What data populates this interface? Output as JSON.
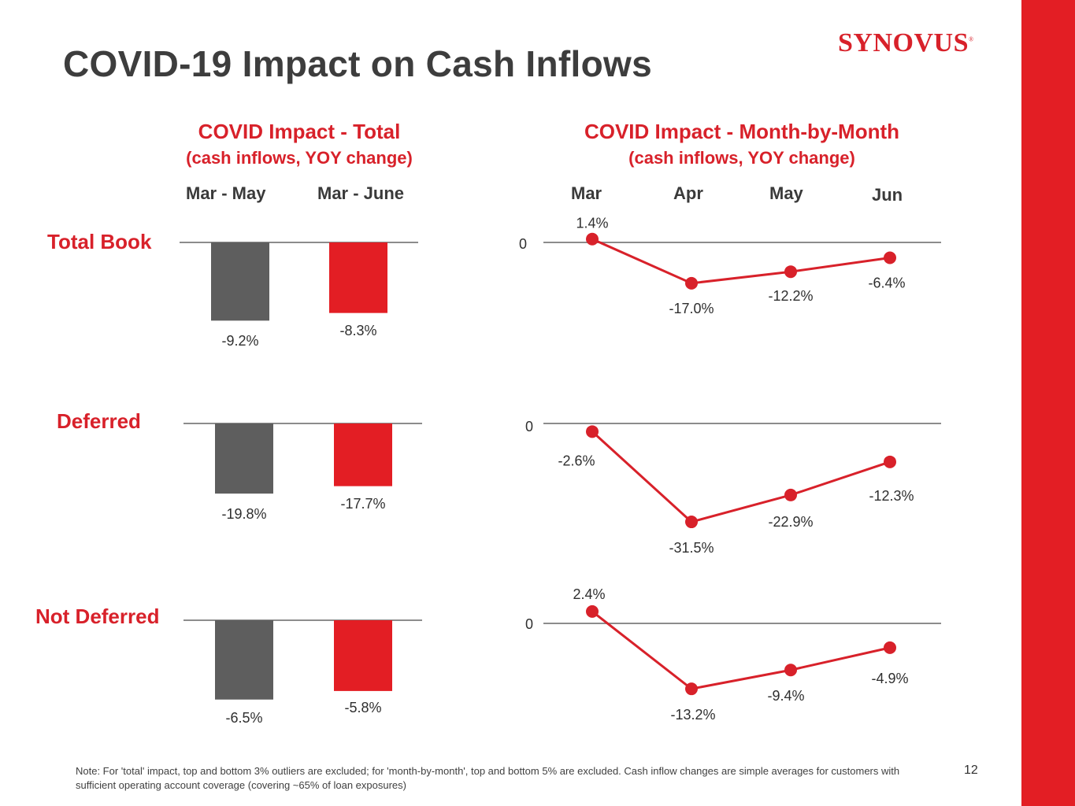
{
  "title": "COVID-19 Impact on Cash Inflows",
  "logo": {
    "text": "SYNOVUS",
    "mark": "®"
  },
  "colors": {
    "accent": "#d8212a",
    "bar_gray": "#5e5e5e",
    "axis": "#8c8c8c",
    "text": "#3a3a3a",
    "sidebar": "#e31e24"
  },
  "left_panel": {
    "title": "COVID Impact - Total",
    "subtitle": "(cash inflows, YOY change)",
    "columns": [
      "Mar - May",
      "Mar - June"
    ]
  },
  "right_panel": {
    "title": "COVID Impact - Month-by-Month",
    "subtitle": "(cash inflows, YOY change)",
    "columns": [
      "Mar",
      "Apr",
      "May",
      "Jun"
    ]
  },
  "rows": [
    "Total Book",
    "Deferred",
    "Not Deferred"
  ],
  "chart_data": [
    {
      "type": "bar",
      "row": "Total Book",
      "categories": [
        "Mar - May",
        "Mar - June"
      ],
      "values": [
        -9.2,
        -8.3
      ],
      "labels": [
        "-9.2%",
        "-8.3%"
      ],
      "colors": [
        "#5e5e5e",
        "#e31e24"
      ]
    },
    {
      "type": "line",
      "row": "Total Book",
      "x": [
        "Mar",
        "Apr",
        "May",
        "Jun"
      ],
      "values": [
        1.4,
        -17.0,
        -12.2,
        -6.4
      ],
      "labels": [
        "1.4%",
        "-17.0%",
        "-12.2%",
        "-6.4%"
      ],
      "zero_label": "0"
    },
    {
      "type": "bar",
      "row": "Deferred",
      "categories": [
        "Mar - May",
        "Mar - June"
      ],
      "values": [
        -19.8,
        -17.7
      ],
      "labels": [
        "-19.8%",
        "-17.7%"
      ],
      "colors": [
        "#5e5e5e",
        "#e31e24"
      ]
    },
    {
      "type": "line",
      "row": "Deferred",
      "x": [
        "Mar",
        "Apr",
        "May",
        "Jun"
      ],
      "values": [
        -2.6,
        -31.5,
        -22.9,
        -12.3
      ],
      "labels": [
        "-2.6%",
        "-31.5%",
        "-22.9%",
        "-12.3%"
      ],
      "zero_label": "0"
    },
    {
      "type": "bar",
      "row": "Not Deferred",
      "categories": [
        "Mar - May",
        "Mar - June"
      ],
      "values": [
        -6.5,
        -5.8
      ],
      "labels": [
        "-6.5%",
        "-5.8%"
      ],
      "colors": [
        "#5e5e5e",
        "#e31e24"
      ]
    },
    {
      "type": "line",
      "row": "Not Deferred",
      "x": [
        "Mar",
        "Apr",
        "May",
        "Jun"
      ],
      "values": [
        2.4,
        -13.2,
        -9.4,
        -4.9
      ],
      "labels": [
        "2.4%",
        "-13.2%",
        "-9.4%",
        "-4.9%"
      ],
      "zero_label": "0"
    }
  ],
  "footnote": "Note: For 'total' impact, top and bottom 3% outliers are excluded; for 'month-by-month', top and bottom 5% are excluded. Cash inflow changes are simple averages for customers with sufficient operating account coverage (covering ~65% of loan exposures)",
  "page_number": "12"
}
